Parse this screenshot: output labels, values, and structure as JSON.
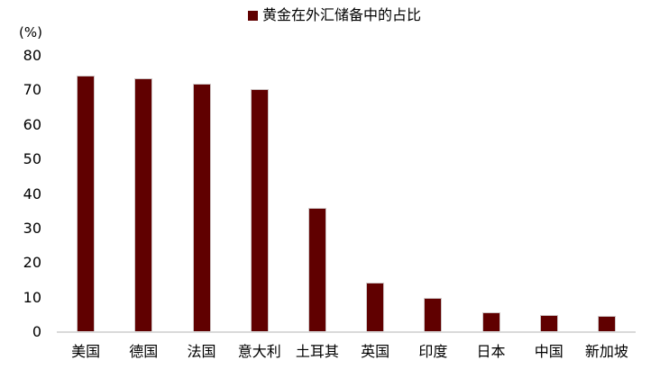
{
  "chart_data": {
    "type": "bar",
    "title": "",
    "legend": "黄金在外汇储备中的占比",
    "legend_position": "top-center",
    "unit_label": "(%)",
    "categories": [
      "美国",
      "德国",
      "法国",
      "意大利",
      "土耳其",
      "英国",
      "印度",
      "日本",
      "中国",
      "新加坡"
    ],
    "values": [
      74.3,
      73.6,
      72.0,
      70.3,
      36.0,
      14.3,
      9.8,
      5.7,
      5.0,
      4.6
    ],
    "ylim": [
      0,
      80
    ],
    "yticks": [
      0,
      10,
      20,
      30,
      40,
      50,
      60,
      70,
      80
    ],
    "grid": false,
    "bar_color": "#600000",
    "axis_line_color": "#d9d9d9",
    "text_color": "#000000",
    "background_color": "#ffffff"
  }
}
